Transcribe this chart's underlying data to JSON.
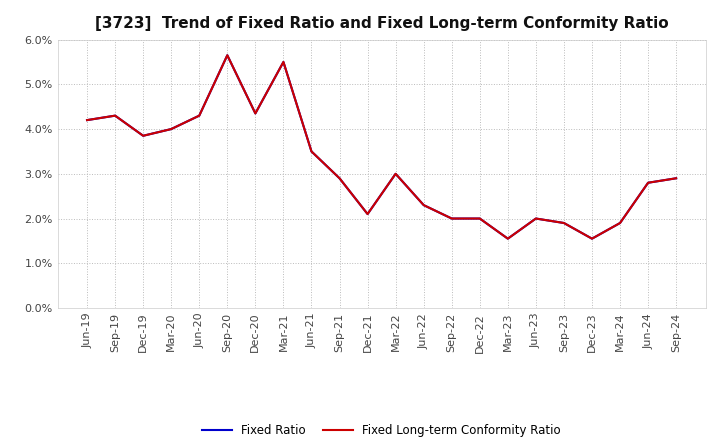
{
  "title": "[3723]  Trend of Fixed Ratio and Fixed Long-term Conformity Ratio",
  "x_labels": [
    "Jun-19",
    "Sep-19",
    "Dec-19",
    "Mar-20",
    "Jun-20",
    "Sep-20",
    "Dec-20",
    "Mar-21",
    "Jun-21",
    "Sep-21",
    "Dec-21",
    "Mar-22",
    "Jun-22",
    "Sep-22",
    "Dec-22",
    "Mar-23",
    "Jun-23",
    "Sep-23",
    "Dec-23",
    "Mar-24",
    "Jun-24",
    "Sep-24"
  ],
  "fixed_ratio": [
    4.2,
    4.3,
    3.85,
    4.0,
    4.3,
    5.65,
    4.35,
    5.5,
    3.5,
    2.9,
    2.1,
    3.0,
    2.3,
    2.0,
    2.0,
    1.55,
    2.0,
    1.9,
    1.55,
    1.9,
    2.8,
    2.9
  ],
  "fixed_lt_ratio": [
    4.2,
    4.3,
    3.85,
    4.0,
    4.3,
    5.65,
    4.35,
    5.5,
    3.5,
    2.9,
    2.1,
    3.0,
    2.3,
    2.0,
    2.0,
    1.55,
    2.0,
    1.9,
    1.55,
    1.9,
    2.8,
    2.9
  ],
  "fixed_ratio_color": "#0000cc",
  "fixed_lt_ratio_color": "#cc0000",
  "ylim": [
    0.0,
    6.0
  ],
  "yticks": [
    0.0,
    1.0,
    2.0,
    3.0,
    4.0,
    5.0,
    6.0
  ],
  "background_color": "#ffffff",
  "plot_bg_color": "#ffffff",
  "grid_color": "#bbbbbb",
  "title_fontsize": 11,
  "tick_fontsize": 8,
  "legend_labels": [
    "Fixed Ratio",
    "Fixed Long-term Conformity Ratio"
  ],
  "line_width": 1.5
}
